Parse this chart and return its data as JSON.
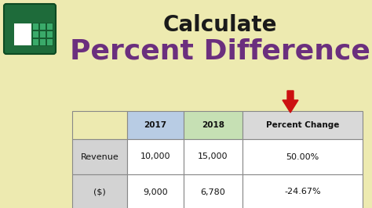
{
  "background_color": "#edeab0",
  "title_text": "Calculate",
  "title_fontsize": 20,
  "title_color": "#1a1a1a",
  "subtitle_text": "Percent Difference",
  "subtitle_fontsize": 26,
  "subtitle_color": "#6b2f7e",
  "arrow_color": "#cc1111",
  "table_headers": [
    "",
    "2017",
    "2018",
    "Percent Change"
  ],
  "table_row1": [
    "Revenue",
    "10,000",
    "15,000",
    "50.00%"
  ],
  "table_row2": [
    "($)",
    "9,000",
    "6,780",
    "-24.67%"
  ],
  "header_bg_col0": "#edeab0",
  "header_bg_col1": "#b8cce4",
  "header_bg_col2": "#c6e0b4",
  "header_bg_col3": "#d9d9d9",
  "row_label_bg": "#d3d3d3",
  "row_data_bg": "#ffffff",
  "excel_green_dark": "#1e6b3a",
  "excel_green_light": "#2ecc71",
  "excel_white": "#f0f0f0"
}
